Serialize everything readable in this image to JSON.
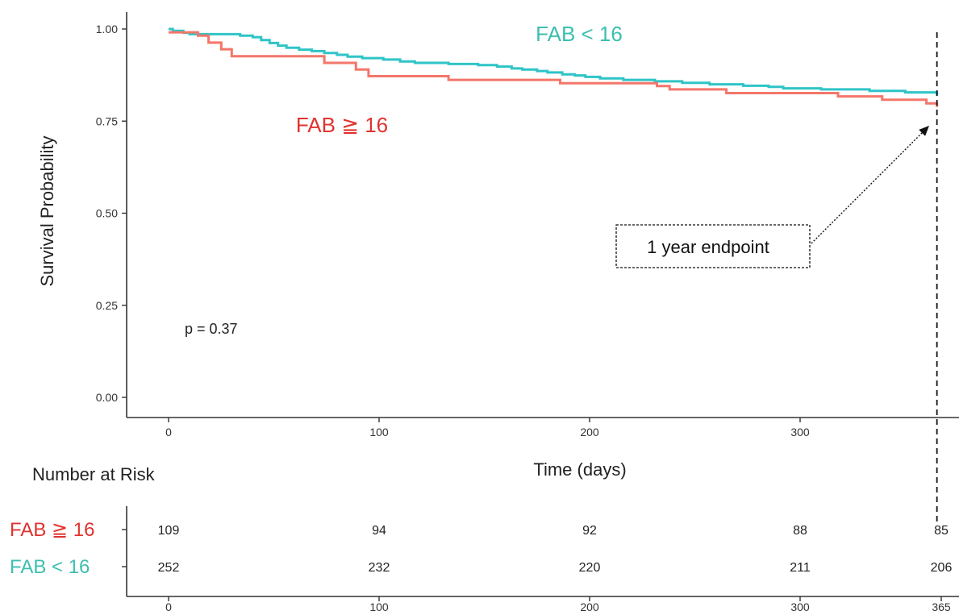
{
  "chart_data": {
    "type": "line",
    "subtype": "kaplan-meier",
    "ylabel": "Survival Probability",
    "xlabel": "Time (days)",
    "xlim": [
      -20,
      375
    ],
    "ylim": [
      -0.05,
      1.05
    ],
    "x_ticks": [
      0,
      100,
      200,
      300
    ],
    "y_ticks": [
      0.0,
      0.25,
      0.5,
      0.75,
      1.0
    ],
    "y_tick_labels": [
      "0.00",
      "0.25",
      "0.50",
      "0.75",
      "1.00"
    ],
    "grid": false,
    "series": [
      {
        "name": "FAB < 16",
        "color": "#2fc4c7",
        "steps": [
          [
            0,
            1.0
          ],
          [
            2,
            0.995
          ],
          [
            7,
            0.99
          ],
          [
            10,
            0.986
          ],
          [
            34,
            0.982
          ],
          [
            40,
            0.978
          ],
          [
            44,
            0.97
          ],
          [
            48,
            0.962
          ],
          [
            52,
            0.955
          ],
          [
            56,
            0.949
          ],
          [
            62,
            0.944
          ],
          [
            68,
            0.94
          ],
          [
            74,
            0.935
          ],
          [
            80,
            0.93
          ],
          [
            85,
            0.925
          ],
          [
            92,
            0.921
          ],
          [
            102,
            0.917
          ],
          [
            110,
            0.912
          ],
          [
            117,
            0.908
          ],
          [
            133,
            0.905
          ],
          [
            147,
            0.902
          ],
          [
            156,
            0.898
          ],
          [
            163,
            0.893
          ],
          [
            168,
            0.89
          ],
          [
            175,
            0.886
          ],
          [
            180,
            0.882
          ],
          [
            187,
            0.877
          ],
          [
            193,
            0.874
          ],
          [
            198,
            0.87
          ],
          [
            205,
            0.866
          ],
          [
            216,
            0.862
          ],
          [
            231,
            0.858
          ],
          [
            244,
            0.854
          ],
          [
            257,
            0.85
          ],
          [
            273,
            0.846
          ],
          [
            285,
            0.843
          ],
          [
            292,
            0.839
          ],
          [
            310,
            0.836
          ],
          [
            333,
            0.832
          ],
          [
            350,
            0.828
          ],
          [
            365,
            0.82
          ]
        ]
      },
      {
        "name": "FAB ≧ 16",
        "color": "#f4766a",
        "steps": [
          [
            0,
            0.991
          ],
          [
            14,
            0.982
          ],
          [
            19,
            0.963
          ],
          [
            25,
            0.945
          ],
          [
            30,
            0.926
          ],
          [
            74,
            0.908
          ],
          [
            89,
            0.89
          ],
          [
            95,
            0.872
          ],
          [
            133,
            0.862
          ],
          [
            186,
            0.853
          ],
          [
            232,
            0.845
          ],
          [
            238,
            0.836
          ],
          [
            265,
            0.826
          ],
          [
            318,
            0.817
          ],
          [
            339,
            0.808
          ],
          [
            360,
            0.798
          ],
          [
            365,
            0.788
          ]
        ]
      }
    ],
    "annotations": {
      "series_label_upper": "FAB < 16",
      "series_label_lower": "FAB ≧ 16",
      "p_value": "p = 0.37",
      "endpoint_label": "1 year endpoint",
      "endpoint_x": 365
    },
    "risk_table": {
      "title": "Number at Risk",
      "time_points": [
        0,
        100,
        200,
        300,
        365
      ],
      "tick_labels": [
        "0",
        "100",
        "200",
        "300",
        "365"
      ],
      "rows": [
        {
          "label": "FAB ≧ 16",
          "color": "#e0332f",
          "counts": [
            "109",
            "94",
            "92",
            "88",
            "85"
          ]
        },
        {
          "label": "FAB < 16",
          "color": "#3cbfb0",
          "counts": [
            "252",
            "232",
            "220",
            "211",
            "206"
          ]
        }
      ]
    }
  },
  "colors": {
    "label_upper": "#3cbfb0",
    "label_lower": "#e0332f",
    "axis": "#333333",
    "text": "#222222"
  }
}
